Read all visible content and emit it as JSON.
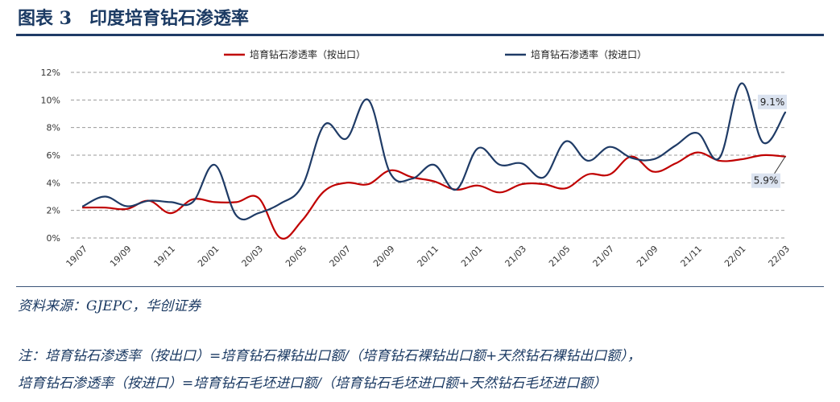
{
  "figure": {
    "label": "图表 3",
    "title": "印度培育钻石渗透率"
  },
  "source": "资料来源：GJEPC，华创证券",
  "notes": [
    "注：培育钻石渗透率（按出口）=培育钻石裸钻出口额/（培育钻石裸钻出口额+天然钻石裸钻出口额），",
    "培育钻石渗透率（按进口）=培育钻石毛坯进口额/（培育钻石毛坯进口额+天然钻石毛坯进口额）"
  ],
  "colors": {
    "export_series": "#c00000",
    "import_series": "#1f3b66",
    "grid": "#9a9a9a",
    "callout_bg": "#dbe3f0"
  },
  "chart_data": {
    "type": "line",
    "x": [
      "19/07",
      "19/08",
      "19/09",
      "19/10",
      "19/11",
      "19/12",
      "20/01",
      "20/02",
      "20/03",
      "20/04",
      "20/05",
      "20/06",
      "20/07",
      "20/08",
      "20/09",
      "20/10",
      "20/11",
      "20/12",
      "21/01",
      "21/02",
      "21/03",
      "21/04",
      "21/05",
      "21/06",
      "21/07",
      "21/08",
      "21/09",
      "21/10",
      "21/11",
      "21/12",
      "22/01",
      "22/02",
      "22/03"
    ],
    "x_tick_labels": [
      "19/07",
      "19/09",
      "19/11",
      "20/01",
      "20/03",
      "20/05",
      "20/07",
      "20/09",
      "20/11",
      "21/01",
      "21/03",
      "21/05",
      "21/07",
      "21/09",
      "21/11",
      "22/01",
      "22/03"
    ],
    "y_ticks": [
      "0%",
      "2%",
      "4%",
      "6%",
      "8%",
      "10%",
      "12%"
    ],
    "ylim": [
      0,
      12
    ],
    "y_unit": "%",
    "grid": "horizontal dashed",
    "legend_position": "top",
    "series": [
      {
        "name": "培育钻石渗透率（按出口）",
        "color": "#c00000",
        "values": [
          2.2,
          2.2,
          2.1,
          2.7,
          1.8,
          2.8,
          2.6,
          2.6,
          2.9,
          0.0,
          1.3,
          3.4,
          4.0,
          3.9,
          4.9,
          4.4,
          4.1,
          3.5,
          3.8,
          3.3,
          3.9,
          3.9,
          3.6,
          4.6,
          4.6,
          5.9,
          4.8,
          5.4,
          6.2,
          5.6,
          5.7,
          6.0,
          5.9
        ],
        "end_label": "5.9%"
      },
      {
        "name": "培育钻石渗透率（按进口）",
        "color": "#1f3b66",
        "values": [
          2.3,
          3.0,
          2.3,
          2.7,
          2.6,
          2.6,
          5.3,
          1.6,
          1.8,
          2.5,
          3.8,
          8.2,
          7.2,
          10.0,
          4.7,
          4.3,
          5.3,
          3.5,
          6.5,
          5.3,
          5.4,
          4.4,
          7.0,
          5.6,
          6.6,
          5.8,
          5.7,
          6.7,
          7.6,
          5.8,
          11.2,
          6.9,
          9.1
        ],
        "end_label": "9.1%"
      }
    ]
  }
}
